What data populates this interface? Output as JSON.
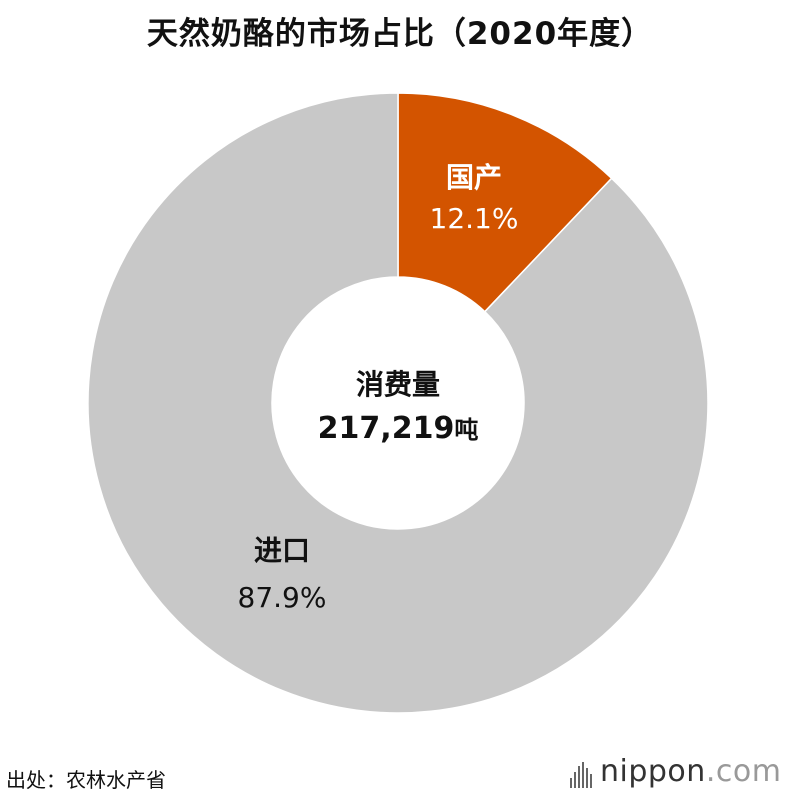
{
  "title": "天然奶酪的市场占比（2020年度）",
  "chart_data": {
    "type": "pie",
    "donut": true,
    "title": "天然奶酪的市场占比（2020年度）",
    "categories": [
      "国产",
      "进口"
    ],
    "values": [
      12.1,
      87.9
    ],
    "value_labels": [
      "12.1%",
      "87.9%"
    ],
    "colors": [
      "#d35400",
      "#c8c8c8"
    ],
    "center_label": "消费量",
    "center_value": "217,219",
    "center_unit": "吨",
    "start": "12 o'clock, clockwise"
  },
  "source": "出处：农林水产省",
  "logo": {
    "brand": "nippon",
    "suffix": ".com",
    "brand_color": "#333333",
    "suffix_color": "#999999"
  }
}
